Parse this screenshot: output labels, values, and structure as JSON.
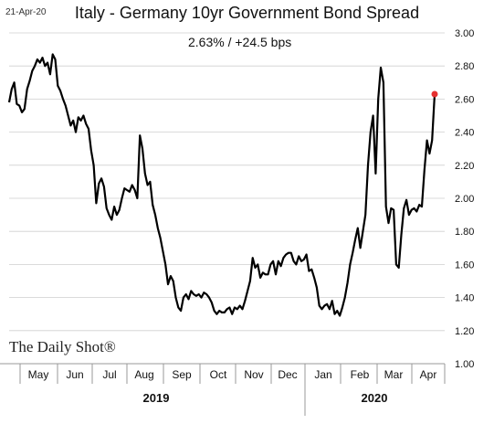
{
  "header": {
    "date_stamp": "21-Apr-20",
    "title": "Italy - Germany 10yr Government Bond Spread",
    "subtitle": "2.63%  /  +24.5 bps"
  },
  "branding": {
    "source": "The Daily Shot®"
  },
  "colors": {
    "line": "#000000",
    "last_point": "#e53030",
    "grid": "#cfcfcf"
  },
  "chart_data": {
    "type": "line",
    "title": "Italy - Germany 10yr Government Bond Spread",
    "xlabel": "",
    "ylabel": "",
    "ylim": [
      1.0,
      3.0
    ],
    "y_axis_position": "right",
    "y_ticks": [
      "1.00",
      "1.20",
      "1.40",
      "1.60",
      "1.80",
      "2.00",
      "2.20",
      "2.40",
      "2.60",
      "2.80",
      "3.00"
    ],
    "grid": "horizontal",
    "month_labels": [
      "May",
      "Jun",
      "Jul",
      "Aug",
      "Sep",
      "Oct",
      "Nov",
      "Dec",
      "Jan",
      "Feb",
      "Mar",
      "Apr"
    ],
    "year_labels": [
      "2019",
      "2020"
    ],
    "series": [
      {
        "values": [
          2.58,
          2.66,
          2.7,
          2.57,
          2.56,
          2.52,
          2.54,
          2.66,
          2.71,
          2.77,
          2.8,
          2.84,
          2.82,
          2.85,
          2.8,
          2.82,
          2.75,
          2.87,
          2.84,
          2.68,
          2.65,
          2.6,
          2.56,
          2.5,
          2.44,
          2.47,
          2.4,
          2.49,
          2.47,
          2.5,
          2.45,
          2.42,
          2.29,
          2.2,
          1.97,
          2.09,
          2.12,
          2.07,
          1.94,
          1.9,
          1.87,
          1.95,
          1.9,
          1.93,
          2.0,
          2.06,
          2.05,
          2.04,
          2.08,
          2.05,
          2.0,
          2.38,
          2.3,
          2.15,
          2.08,
          2.1,
          1.96,
          1.9,
          1.82,
          1.76,
          1.68,
          1.6,
          1.48,
          1.53,
          1.5,
          1.4,
          1.34,
          1.32,
          1.4,
          1.42,
          1.39,
          1.44,
          1.42,
          1.41,
          1.42,
          1.4,
          1.43,
          1.42,
          1.4,
          1.37,
          1.32,
          1.3,
          1.32,
          1.31,
          1.31,
          1.33,
          1.34,
          1.3,
          1.34,
          1.33,
          1.35,
          1.33,
          1.38,
          1.44,
          1.5,
          1.64,
          1.58,
          1.6,
          1.52,
          1.55,
          1.54,
          1.54,
          1.6,
          1.62,
          1.54,
          1.62,
          1.59,
          1.64,
          1.66,
          1.67,
          1.67,
          1.62,
          1.6,
          1.65,
          1.62,
          1.63,
          1.66,
          1.56,
          1.57,
          1.52,
          1.46,
          1.35,
          1.33,
          1.35,
          1.36,
          1.33,
          1.38,
          1.3,
          1.32,
          1.29,
          1.34,
          1.4,
          1.49,
          1.6,
          1.67,
          1.75,
          1.82,
          1.7,
          1.8,
          1.9,
          2.2,
          2.4,
          2.5,
          2.15,
          2.6,
          2.79,
          2.7,
          1.95,
          1.85,
          1.94,
          1.93,
          1.6,
          1.58,
          1.78,
          1.94,
          1.99,
          1.9,
          1.93,
          1.94,
          1.92,
          1.96,
          1.95,
          2.17,
          2.35,
          2.27,
          2.35,
          2.63
        ]
      }
    ],
    "last_value": 2.63
  }
}
